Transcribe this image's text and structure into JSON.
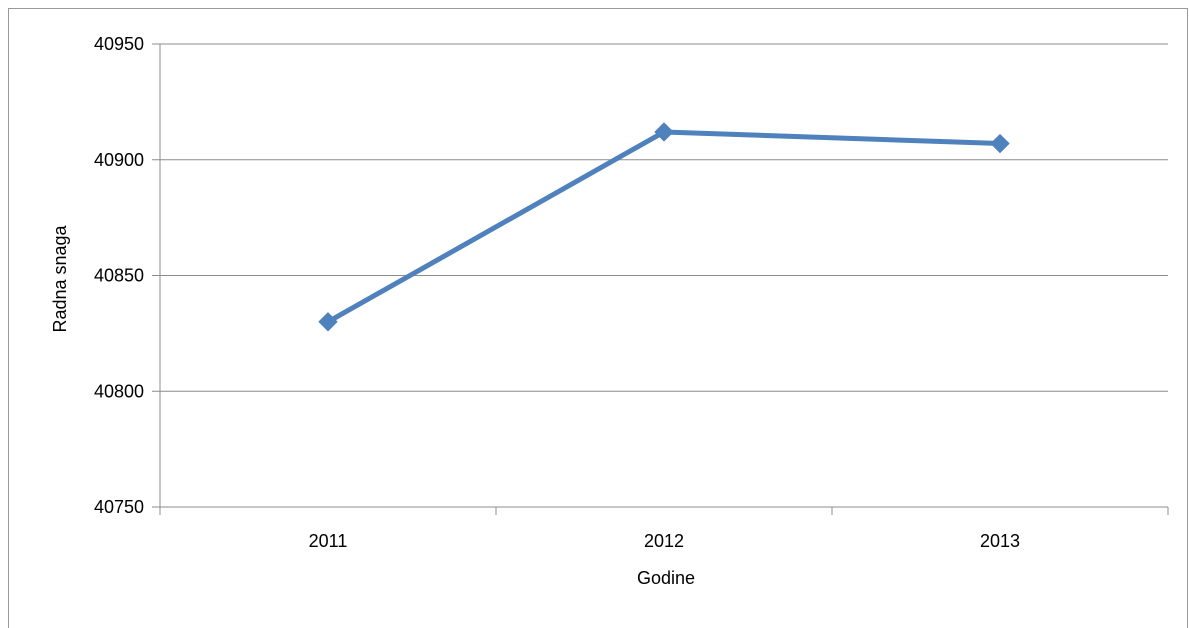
{
  "chart_data": {
    "type": "line",
    "title": "",
    "xlabel": "Godine",
    "ylabel": "Radna snaga",
    "categories": [
      "2011",
      "2012",
      "2013"
    ],
    "series": [
      {
        "values": [
          40830,
          40912,
          40907
        ],
        "color": "#4f81bd",
        "marker": "diamond"
      }
    ],
    "ylim": [
      40750,
      40950
    ],
    "yticks": [
      "40750",
      "40800",
      "40850",
      "40900",
      "40950"
    ],
    "grid": "horizontal",
    "legend": "none"
  }
}
